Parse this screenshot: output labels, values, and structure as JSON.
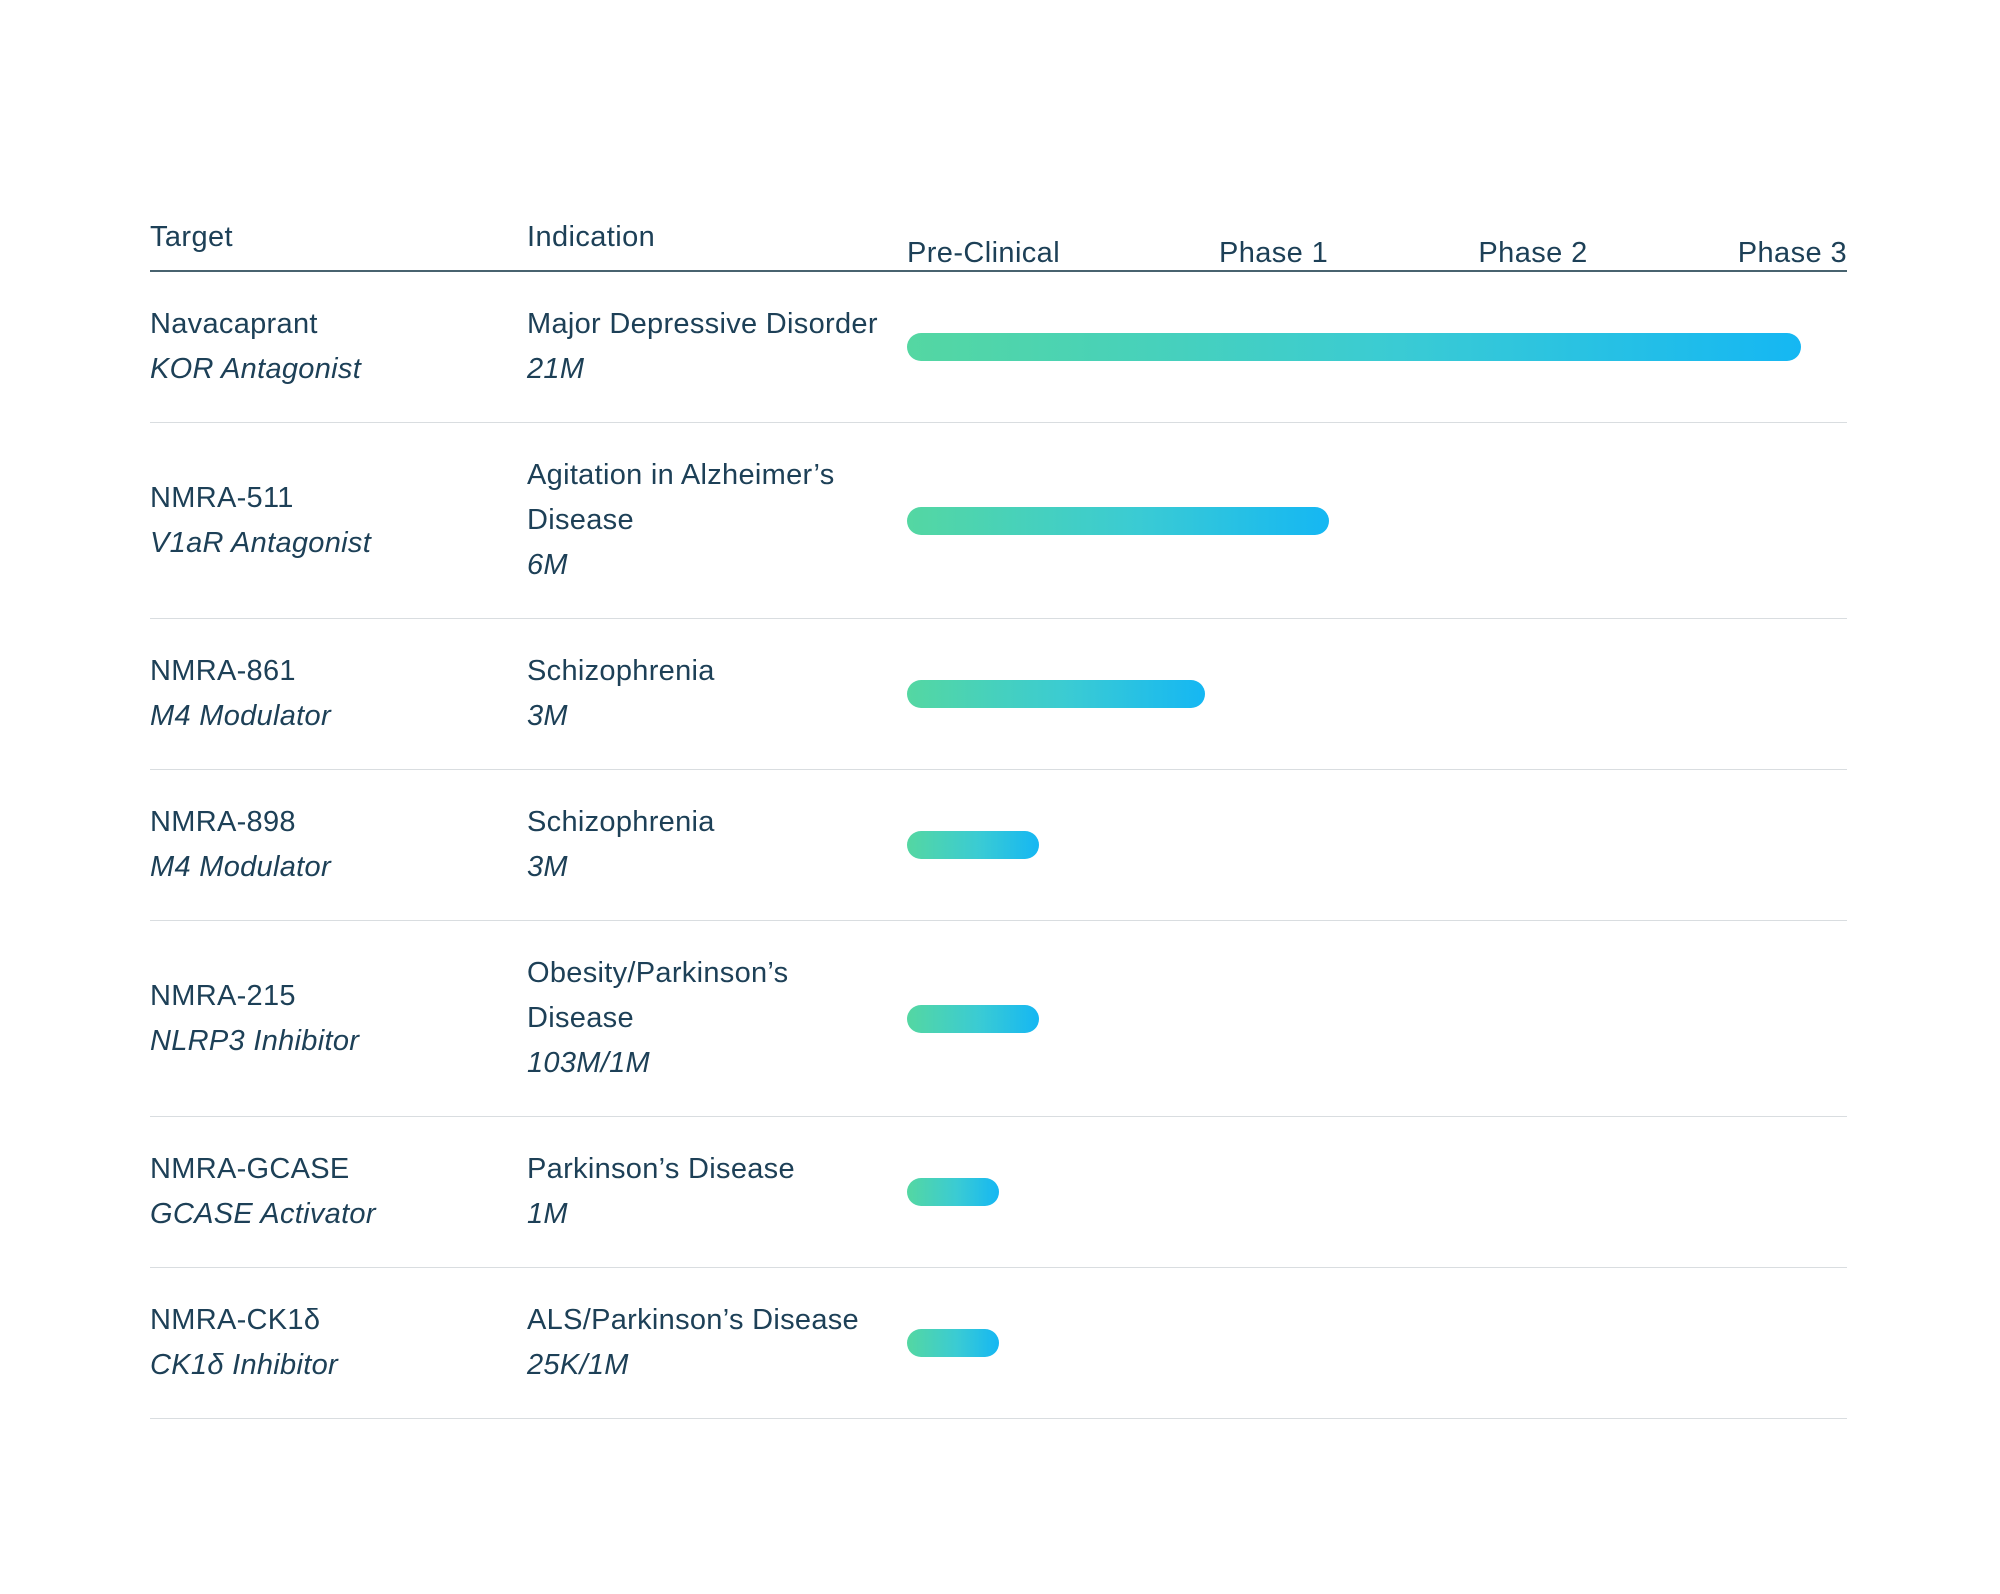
{
  "header": {
    "target_col": "Target",
    "indication_col": "Indication",
    "phases": [
      "Pre-Clinical",
      "Phase 1",
      "Phase 2",
      "Phase 3"
    ]
  },
  "colors": {
    "text": "#1d4057",
    "header_rule": "#48636f",
    "row_divider": "#d9dde0",
    "bar_gradient_start": "#54d7a2",
    "bar_gradient_end": "#15b7f3"
  },
  "rows": [
    {
      "target": "Navacaprant",
      "mechanism": "KOR Antagonist",
      "indication": "Major Depressive Disorder",
      "population": "21M",
      "progress_pct": 100,
      "phase_reached": "Phase 3"
    },
    {
      "target": "NMRA-511",
      "mechanism": "V1aR Antagonist",
      "indication": "Agitation in Alzheimer’s Disease",
      "population": "6M",
      "progress_pct": 47.2,
      "phase_reached": "Phase 1"
    },
    {
      "target": "NMRA-861",
      "mechanism": "M4 Modulator",
      "indication": "Schizophrenia",
      "population": "3M",
      "progress_pct": 33.3,
      "phase_reached": "Pre-Clinical"
    },
    {
      "target": "NMRA-898",
      "mechanism": "M4 Modulator",
      "indication": "Schizophrenia",
      "population": "3M",
      "progress_pct": 14.8,
      "phase_reached": "Pre-Clinical"
    },
    {
      "target": "NMRA-215",
      "mechanism": "NLRP3 Inhibitor",
      "indication": "Obesity/Parkinson’s Disease",
      "population": "103M/1M",
      "progress_pct": 14.8,
      "phase_reached": "Pre-Clinical"
    },
    {
      "target": "NMRA-GCASE",
      "mechanism": "GCASE Activator",
      "indication": "Parkinson’s Disease",
      "population": "1M",
      "progress_pct": 10.3,
      "phase_reached": "Pre-Clinical"
    },
    {
      "target": "NMRA-CK1δ",
      "mechanism": "CK1δ Inhibitor",
      "indication": "ALS/Parkinson’s Disease",
      "population": "25K/1M",
      "progress_pct": 10.3,
      "phase_reached": "Pre-Clinical"
    }
  ],
  "chart_data": {
    "type": "bar",
    "orientation": "horizontal",
    "title": "",
    "categories": [
      "Navacaprant",
      "NMRA-511",
      "NMRA-861",
      "NMRA-898",
      "NMRA-215",
      "NMRA-GCASE",
      "NMRA-CK1δ"
    ],
    "values": [
      100,
      47.2,
      33.3,
      14.8,
      14.8,
      10.3,
      10.3
    ],
    "values_units": "percent of track from Pre-Clinical start to Phase 3",
    "phase_reached": [
      "Phase 3",
      "Phase 1",
      "Pre-Clinical",
      "Pre-Clinical",
      "Pre-Clinical",
      "Pre-Clinical",
      "Pre-Clinical"
    ],
    "x_axis_labels": [
      "Pre-Clinical",
      "Phase 1",
      "Phase 2",
      "Phase 3"
    ],
    "xlabel": "",
    "ylabel": "",
    "legend": "none",
    "grid": false,
    "bar_style": "rounded gradient green-to-blue"
  }
}
